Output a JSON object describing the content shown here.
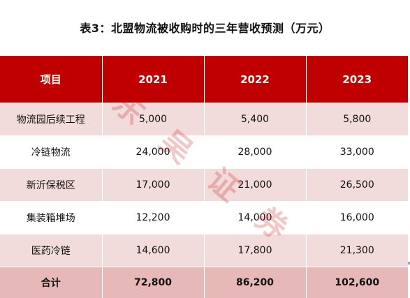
{
  "title": "表3：北盟物流被收购时的三年营收预测（万元）",
  "table": {
    "headers": [
      "项目",
      "2021",
      "2022",
      "2023"
    ],
    "rows": [
      [
        "物流园后续工程",
        "5,000",
        "5,400",
        "5,800"
      ],
      [
        "冷链物流",
        "24,000",
        "28,000",
        "33,000"
      ],
      [
        "新沂保税区",
        "17,000",
        "21,000",
        "26,500"
      ],
      [
        "集装箱堆场",
        "12,200",
        "14,000",
        "16,000"
      ],
      [
        "医药冷链",
        "14,600",
        "17,800",
        "21,300"
      ]
    ],
    "total": [
      "合计",
      "72,800",
      "86,200",
      "102,600"
    ]
  },
  "watermark": {
    "chars": [
      "东",
      "吴",
      "证",
      "券"
    ]
  },
  "colors": {
    "header_bg": "#c00000",
    "row_alt_bg": "#f2dcdb",
    "total_bg": "#e6b8b7",
    "watermark": "#c00000"
  }
}
